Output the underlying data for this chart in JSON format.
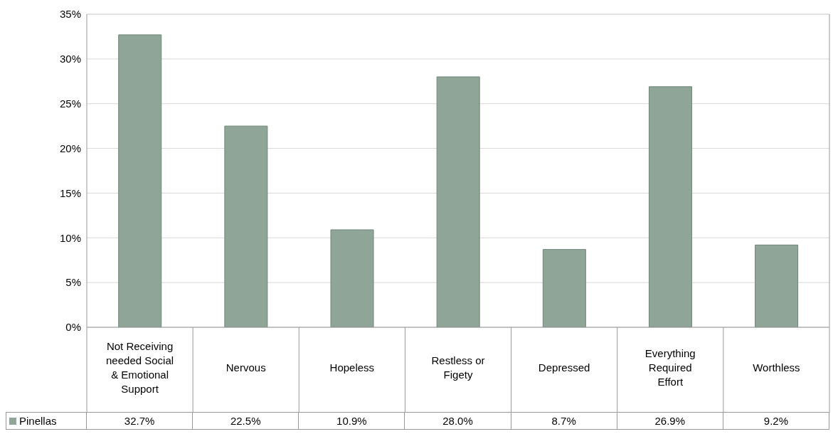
{
  "chart_data": {
    "type": "bar",
    "categories": [
      "Not Receiving needed Social & Emotional Support",
      "Nervous",
      "Hopeless",
      "Restless or Figety",
      "Depressed",
      "Everything Required Effort",
      "Worthless"
    ],
    "series": [
      {
        "name": "Pinellas",
        "color": "#8fa597",
        "values": [
          32.7,
          22.5,
          10.9,
          28.0,
          8.7,
          26.9,
          9.2
        ],
        "value_labels": [
          "32.7%",
          "22.5%",
          "10.9%",
          "28.0%",
          "8.7%",
          "26.9%",
          "9.2%"
        ]
      }
    ],
    "ylim": [
      0,
      35
    ],
    "yticks": [
      {
        "value": 0,
        "label": "0%"
      },
      {
        "value": 5,
        "label": "5%"
      },
      {
        "value": 10,
        "label": "10%"
      },
      {
        "value": 15,
        "label": "15%"
      },
      {
        "value": 20,
        "label": "20%"
      },
      {
        "value": 25,
        "label": "25%"
      },
      {
        "value": 30,
        "label": "30%"
      },
      {
        "value": 35,
        "label": "35%"
      }
    ],
    "grid": "y",
    "legend": "bottom"
  }
}
